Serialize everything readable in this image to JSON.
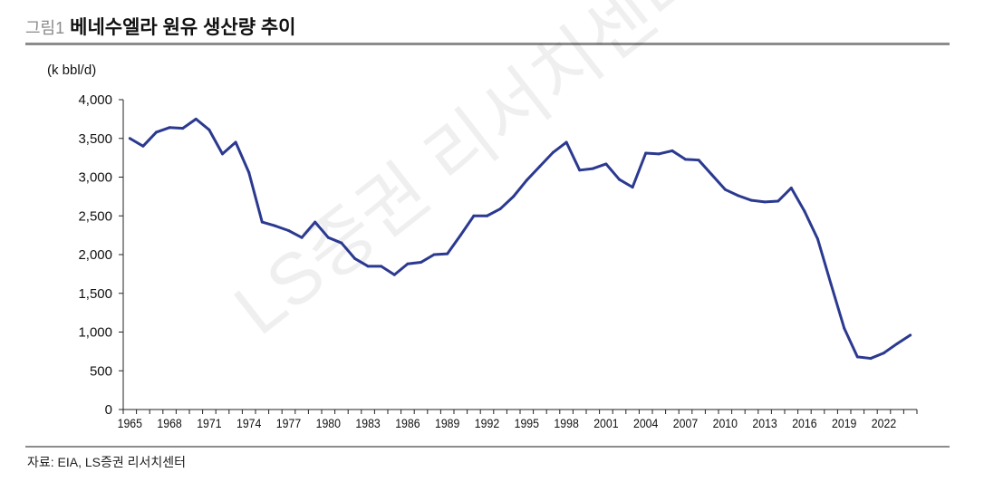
{
  "header": {
    "figure_label": "그림1",
    "title": "베네수엘라 원유 생산량 추이"
  },
  "source": "자료: EIA, LS증권 리서치센터",
  "watermark": "LS증권 리서치센터",
  "chart_data": {
    "type": "line",
    "title": "",
    "ylabel": "(k bbl/d)",
    "xlabel": "",
    "ylim": [
      0,
      4000
    ],
    "yticks": [
      "0",
      "500",
      "1,000",
      "1,500",
      "2,000",
      "2,500",
      "3,000",
      "3,500",
      "4,000"
    ],
    "xtick_labels": [
      "1965",
      "1968",
      "1971",
      "1974",
      "1977",
      "1980",
      "1983",
      "1986",
      "1989",
      "1992",
      "1995",
      "1998",
      "2001",
      "2004",
      "2007",
      "2010",
      "2013",
      "2016",
      "2019",
      "2022"
    ],
    "grid": false,
    "line_color": "#2b3990",
    "x": [
      1965,
      1966,
      1967,
      1968,
      1969,
      1970,
      1971,
      1972,
      1973,
      1974,
      1975,
      1976,
      1977,
      1978,
      1979,
      1980,
      1981,
      1982,
      1983,
      1984,
      1985,
      1986,
      1987,
      1988,
      1989,
      1990,
      1991,
      1992,
      1993,
      1994,
      1995,
      1996,
      1997,
      1998,
      1999,
      2000,
      2001,
      2002,
      2003,
      2004,
      2005,
      2006,
      2007,
      2008,
      2009,
      2010,
      2011,
      2012,
      2013,
      2014,
      2015,
      2016,
      2017,
      2018,
      2019,
      2020,
      2021,
      2022,
      2023,
      2024
    ],
    "series": [
      {
        "values": [
          3500,
          3400,
          3580,
          3640,
          3630,
          3750,
          3610,
          3300,
          3450,
          3060,
          2420,
          2370,
          2310,
          2220,
          2420,
          2220,
          2150,
          1950,
          1850,
          1850,
          1740,
          1880,
          1900,
          2000,
          2010,
          2250,
          2500,
          2500,
          2590,
          2750,
          2960,
          3140,
          3320,
          3450,
          3090,
          3110,
          3170,
          2970,
          2870,
          3310,
          3300,
          3340,
          3230,
          3220,
          3030,
          2840,
          2760,
          2700,
          2680,
          2690,
          2860,
          2560,
          2200,
          1620,
          1050,
          680,
          660,
          730,
          850,
          960
        ]
      }
    ]
  }
}
